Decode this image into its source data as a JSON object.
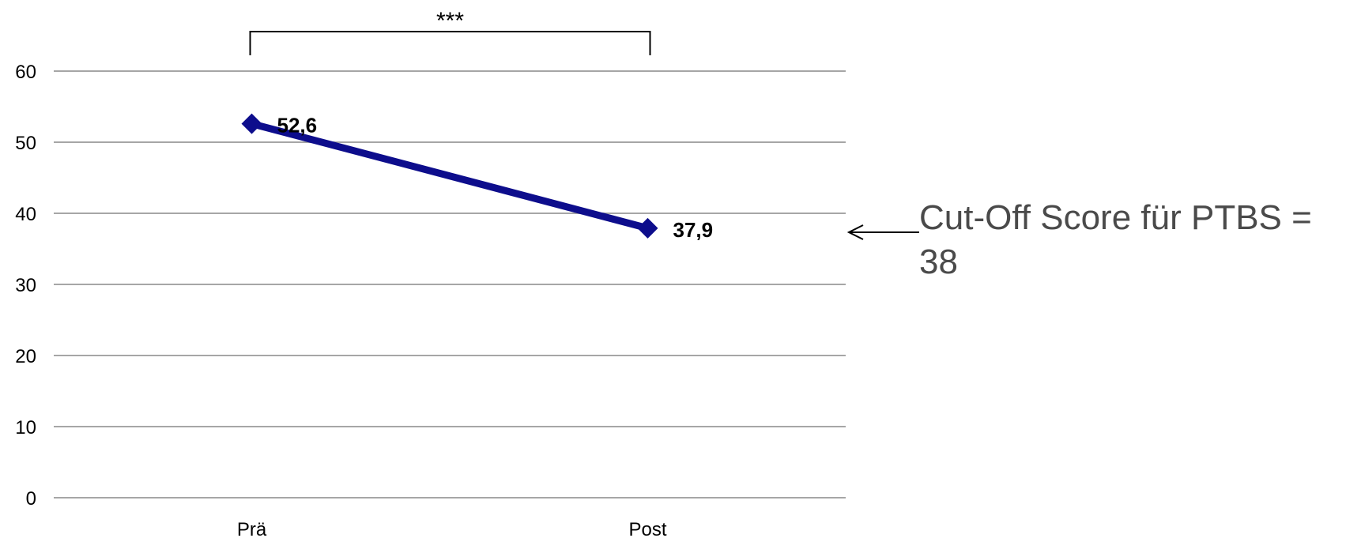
{
  "chart_data": {
    "type": "line",
    "categories": [
      "Prä",
      "Post"
    ],
    "series": [
      {
        "values": [
          52.6,
          37.9
        ],
        "labels": [
          "52,6",
          "37,9"
        ]
      }
    ],
    "ylim": [
      0,
      60
    ],
    "yticks": [
      "0",
      "10",
      "20",
      "30",
      "40",
      "50",
      "60"
    ],
    "grid": true,
    "legend": "none",
    "colors": {
      "series": "#0d0d8c",
      "grid": "#a6a6a6"
    },
    "significance": {
      "label": "***",
      "between": [
        "Prä",
        "Post"
      ]
    },
    "annotation": {
      "text": "Cut-Off Score für PTBS = 38",
      "y": 38
    }
  }
}
